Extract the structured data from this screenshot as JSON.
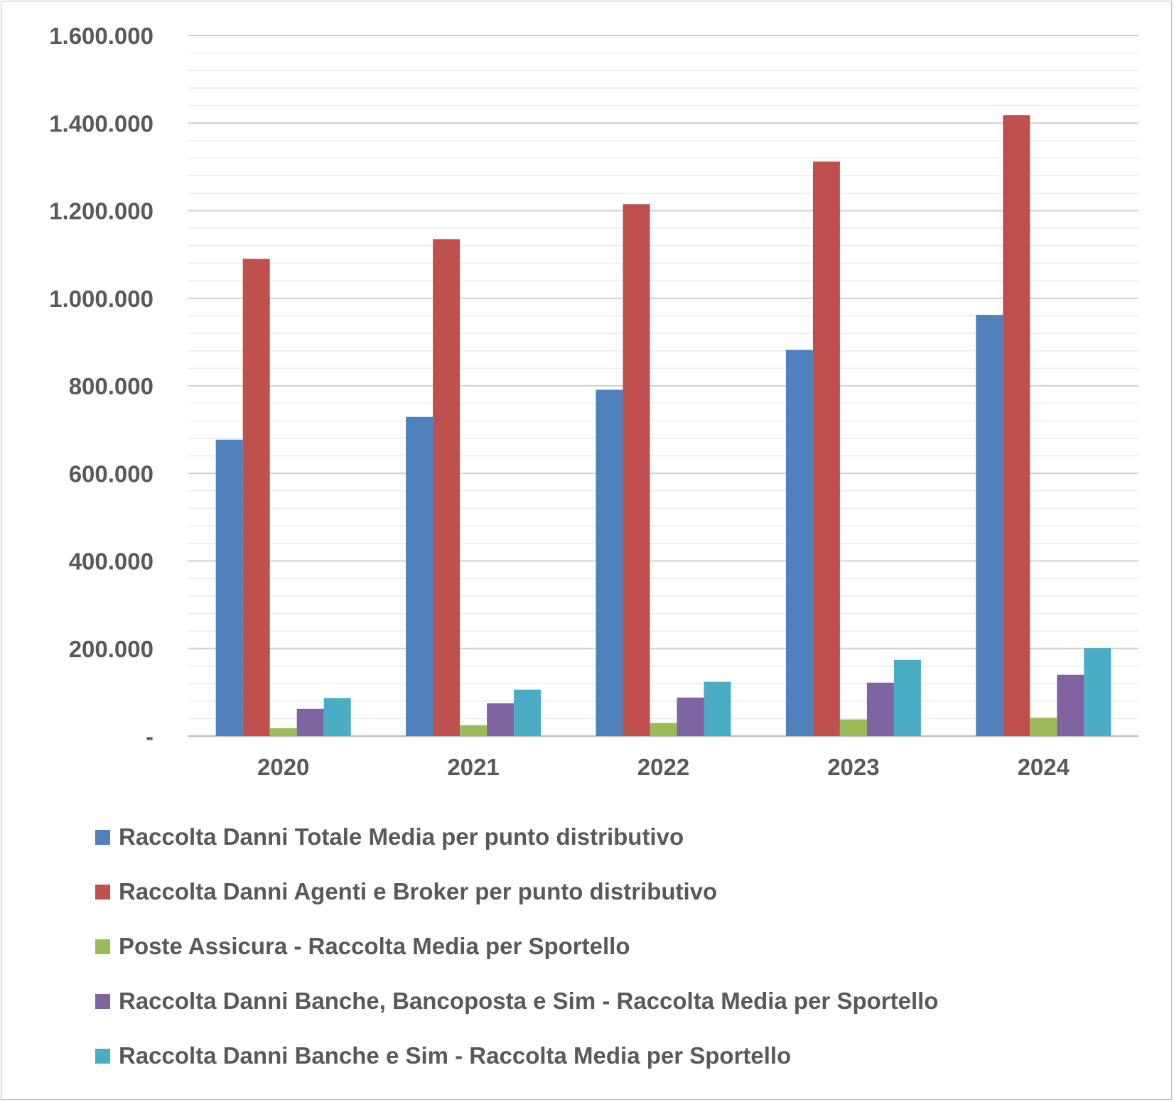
{
  "chart_data": {
    "type": "bar",
    "categories": [
      "2020",
      "2021",
      "2022",
      "2023",
      "2024"
    ],
    "series": [
      {
        "name": "Raccolta Danni Totale Media per punto distributivo",
        "color": "#4f81bd",
        "values": [
          677000,
          729000,
          791000,
          882000,
          962000
        ]
      },
      {
        "name": "Raccolta Danni Agenti e Broker per punto distributivo",
        "color": "#c0504d",
        "values": [
          1090000,
          1135000,
          1215000,
          1312000,
          1418000
        ]
      },
      {
        "name": "Poste Assicura - Raccolta Media per Sportello",
        "color": "#9bbb59",
        "values": [
          18000,
          25000,
          30000,
          38000,
          42000
        ]
      },
      {
        "name": "Raccolta Danni Banche, Bancoposta e Sim - Raccolta Media per Sportello",
        "color": "#8064a2",
        "values": [
          62000,
          75000,
          88000,
          122000,
          140000
        ]
      },
      {
        "name": "Raccolta Danni Banche e Sim - Raccolta Media per Sportello",
        "color": "#4bacc6",
        "values": [
          87000,
          106000,
          124000,
          174000,
          201000
        ]
      }
    ],
    "y_ticks": [
      {
        "value": 0,
        "label": "-"
      },
      {
        "value": 200000,
        "label": "200.000"
      },
      {
        "value": 400000,
        "label": "400.000"
      },
      {
        "value": 600000,
        "label": "600.000"
      },
      {
        "value": 800000,
        "label": "800.000"
      },
      {
        "value": 1000000,
        "label": "1.000.000"
      },
      {
        "value": 1200000,
        "label": "1.200.000"
      },
      {
        "value": 1400000,
        "label": "1.400.000"
      },
      {
        "value": 1600000,
        "label": "1.600.000"
      }
    ],
    "ylim": [
      0,
      1600000
    ],
    "minor_grid_step": 40000,
    "grid": true,
    "legend_position": "bottom",
    "title": "",
    "xlabel": "",
    "ylabel": ""
  }
}
